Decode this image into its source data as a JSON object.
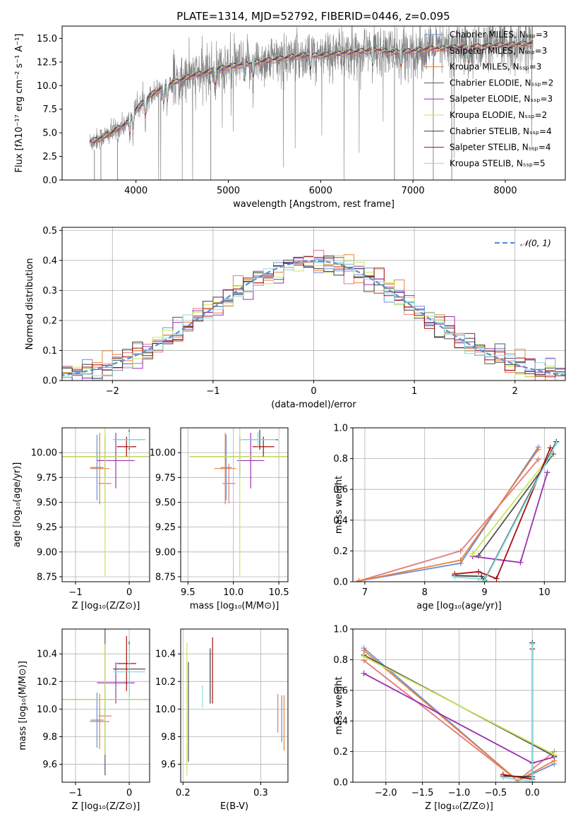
{
  "title": "PLATE=1314, MJD=52792, FIBERID=0446, z=0.095",
  "colors": {
    "Chabrier MILES": "#6a8fd8",
    "Salpeter MILES": "#e07a7a",
    "Kroupa MILES": "#e8813a",
    "Chabrier ELODIE": "#555555",
    "Salpeter ELODIE": "#9b30b0",
    "Kroupa ELODIE": "#c8e65a",
    "Chabrier STELIB": "#3a3a3a",
    "Salpeter STELIB": "#a80f0f",
    "Kroupa STELIB": "#88dde0",
    "data": "#808080",
    "normal": "#5b8ed6"
  },
  "chart_data": [
    {
      "id": "spectrum",
      "type": "line",
      "xlabel": "wavelength [Angstrom, rest frame]",
      "ylabel": "Flux [fλ10⁻¹⁷ erg cm⁻² s⁻¹ A⁻¹]",
      "xlim": [
        3200,
        8650
      ],
      "ylim": [
        0,
        16.3
      ],
      "xticks": [
        "4000",
        "5000",
        "6000",
        "7000",
        "8000"
      ],
      "yticks": [
        "0.0",
        "2.5",
        "5.0",
        "7.5",
        "10.0",
        "12.5",
        "15.0"
      ],
      "legend_position": "upper-right",
      "legend": [
        "Chabrier MILES, Nₛₛₚ=3",
        "Salpeter MILES, Nₛₛₚ=3",
        "Kroupa MILES, Nₛₛₚ=3",
        "Chabrier ELODIE, Nₛₛₚ=2",
        "Salpeter ELODIE, Nₛₛₚ=3",
        "Kroupa ELODIE, Nₛₛₚ=2",
        "Chabrier STELIB, Nₛₛₚ=4",
        "Salpeter STELIB, Nₛₛₚ=4",
        "Kroupa STELIB, Nₛₛₚ=5"
      ],
      "continuum": {
        "x": [
          3500,
          3700,
          3900,
          4000,
          4200,
          4400,
          4600,
          4800,
          5000,
          5200,
          5400,
          5600,
          5800,
          6000,
          6200,
          6400,
          6600,
          6800,
          7000,
          7200,
          7400,
          7600,
          7800,
          8000,
          8200,
          8300
        ],
        "y": [
          4.0,
          4.8,
          6.0,
          7.5,
          9.3,
          10.3,
          11.0,
          11.5,
          12.0,
          12.3,
          12.6,
          12.9,
          13.2,
          13.2,
          13.4,
          13.6,
          13.8,
          13.5,
          13.7,
          13.9,
          14.0,
          14.1,
          14.2,
          14.3,
          14.4,
          14.5
        ]
      }
    },
    {
      "id": "residuals",
      "type": "histogram",
      "xlabel": "(data-model)/error",
      "ylabel": "Normed distribution",
      "xlim": [
        -2.5,
        2.5
      ],
      "ylim": [
        0,
        0.51
      ],
      "xticks": [
        "−2",
        "−1",
        "0",
        "1",
        "2"
      ],
      "yticks": [
        "0.0",
        "0.1",
        "0.2",
        "0.3",
        "0.4",
        "0.5"
      ],
      "grid": true,
      "bin_width": 0.1,
      "legend_position": "upper-right",
      "legend": [
        "𝒩(0, 1)"
      ]
    },
    {
      "id": "age-vs-Z",
      "type": "scatter",
      "xlabel": "Z [log₁₀(Z/Z⊙)]",
      "ylabel": "age  [log₁₀(age/yr)]",
      "xlim": [
        -1.25,
        0.38
      ],
      "ylim": [
        8.7,
        10.25
      ],
      "xticks": [
        "−1",
        "0"
      ],
      "yticks": [
        "8.75",
        "9.00",
        "9.25",
        "9.50",
        "9.75",
        "10.00"
      ],
      "grid": true,
      "points": [
        {
          "model": "Chabrier MILES",
          "x": -0.6,
          "y": 9.85,
          "xerr": 0.12,
          "yerr": 0.33
        },
        {
          "model": "Salpeter MILES",
          "x": -0.45,
          "y": 9.69,
          "xerr": 0.12,
          "yerr": 0.2
        },
        {
          "model": "Kroupa MILES",
          "x": -0.55,
          "y": 9.84,
          "xerr": 0.18,
          "yerr": 0.36
        },
        {
          "model": "Chabrier ELODIE",
          "x": -0.45,
          "y": 9.96,
          "xerr": 1.0,
          "yerr": 0.2
        },
        {
          "model": "Salpeter ELODIE",
          "x": -0.25,
          "y": 9.92,
          "xerr": 0.35,
          "yerr": 0.28
        },
        {
          "model": "Kroupa ELODIE",
          "x": -0.45,
          "y": 9.96,
          "xerr": 1.0,
          "yerr": 1.2
        },
        {
          "model": "Chabrier STELIB",
          "x": 0.0,
          "y": 10.13,
          "xerr": 0.3,
          "yerr": 0.1
        },
        {
          "model": "Salpeter STELIB",
          "x": -0.05,
          "y": 10.06,
          "xerr": 0.18,
          "yerr": 0.1
        },
        {
          "model": "Kroupa STELIB",
          "x": 0.0,
          "y": 10.13,
          "xerr": 0.3,
          "yerr": 0.08
        }
      ]
    },
    {
      "id": "age-vs-mass",
      "type": "scatter",
      "xlabel": "mass [log₁₀(M/M⊙)]",
      "ylabel": "",
      "xlim": [
        9.42,
        10.6
      ],
      "ylim": [
        8.7,
        10.25
      ],
      "xticks": [
        "9.5",
        "10.0",
        "10.5"
      ],
      "yticks": [
        "8.75",
        "9.00",
        "9.25",
        "9.50",
        "9.75",
        "10.00"
      ],
      "grid": true,
      "points": [
        {
          "model": "Chabrier MILES",
          "x": 9.92,
          "y": 9.85,
          "xerr": 0.06,
          "yerr": 0.33
        },
        {
          "model": "Salpeter MILES",
          "x": 9.95,
          "y": 9.69,
          "xerr": 0.07,
          "yerr": 0.2
        },
        {
          "model": "Kroupa MILES",
          "x": 9.91,
          "y": 9.84,
          "xerr": 0.12,
          "yerr": 0.36
        },
        {
          "model": "Chabrier ELODIE",
          "x": 10.07,
          "y": 9.96,
          "xerr": 0.55,
          "yerr": 0.2
        },
        {
          "model": "Salpeter ELODIE",
          "x": 10.19,
          "y": 9.92,
          "xerr": 0.15,
          "yerr": 0.28
        },
        {
          "model": "Kroupa ELODIE",
          "x": 10.07,
          "y": 9.96,
          "xerr": 0.55,
          "yerr": 1.2
        },
        {
          "model": "Chabrier STELIB",
          "x": 10.29,
          "y": 10.13,
          "xerr": 0.2,
          "yerr": 0.1
        },
        {
          "model": "Salpeter STELIB",
          "x": 10.33,
          "y": 10.06,
          "xerr": 0.12,
          "yerr": 0.1
        },
        {
          "model": "Kroupa STELIB",
          "x": 10.27,
          "y": 10.13,
          "xerr": 0.2,
          "yerr": 0.08
        }
      ]
    },
    {
      "id": "weight-vs-age",
      "type": "line",
      "xlabel": "age  [log₁₀(age/yr)]",
      "ylabel": "mass weight",
      "xlim": [
        6.8,
        10.35
      ],
      "ylim": [
        0,
        1.0
      ],
      "xticks": [
        "7",
        "8",
        "9",
        "10"
      ],
      "yticks": [
        "0.0",
        "0.2",
        "0.4",
        "0.6",
        "0.8",
        "1.0"
      ],
      "grid": true,
      "series": [
        {
          "model": "Chabrier MILES",
          "x": [
            6.9,
            8.6,
            9.9
          ],
          "y": [
            0.005,
            0.12,
            0.875
          ]
        },
        {
          "model": "Salpeter MILES",
          "x": [
            6.9,
            8.6,
            9.9
          ],
          "y": [
            0.005,
            0.2,
            0.795
          ]
        },
        {
          "model": "Kroupa MILES",
          "x": [
            6.9,
            8.6,
            9.9
          ],
          "y": [
            0.005,
            0.14,
            0.86
          ]
        },
        {
          "model": "Chabrier ELODIE",
          "x": [
            8.9,
            10.15
          ],
          "y": [
            0.17,
            0.83
          ]
        },
        {
          "model": "Salpeter ELODIE",
          "x": [
            8.8,
            9.6,
            10.05
          ],
          "y": [
            0.165,
            0.125,
            0.71
          ]
        },
        {
          "model": "Kroupa ELODIE",
          "x": [
            8.8,
            10.1
          ],
          "y": [
            0.18,
            0.82
          ]
        },
        {
          "model": "Chabrier STELIB",
          "x": [
            8.5,
            8.95,
            9.0,
            10.2
          ],
          "y": [
            0.04,
            0.035,
            0.01,
            0.91
          ]
        },
        {
          "model": "Salpeter STELIB",
          "x": [
            8.5,
            8.9,
            9.2,
            10.1
          ],
          "y": [
            0.05,
            0.065,
            0.02,
            0.87
          ]
        },
        {
          "model": "Kroupa STELIB",
          "x": [
            8.5,
            8.9,
            9.0,
            10.2
          ],
          "y": [
            0.03,
            0.02,
            0.005,
            0.9
          ]
        }
      ]
    },
    {
      "id": "mass-vs-Z",
      "type": "scatter",
      "xlabel": "Z [log₁₀(Z/Z⊙)]",
      "ylabel": "mass [log₁₀(M/M⊙)]",
      "xlim": [
        -1.25,
        0.38
      ],
      "ylim": [
        9.47,
        10.58
      ],
      "xticks": [
        "−1",
        "0"
      ],
      "yticks": [
        "9.6",
        "9.8",
        "10.0",
        "10.2",
        "10.4"
      ],
      "grid": true,
      "points": [
        {
          "model": "Chabrier MILES",
          "x": -0.6,
          "y": 9.92,
          "xerr": 0.12,
          "yerr": 0.2
        },
        {
          "model": "Salpeter MILES",
          "x": -0.45,
          "y": 9.95,
          "xerr": 0.12,
          "yerr": 0.07
        },
        {
          "model": "Kroupa MILES",
          "x": -0.55,
          "y": 9.91,
          "xerr": 0.18,
          "yerr": 0.2
        },
        {
          "model": "Chabrier ELODIE",
          "x": -0.45,
          "y": 10.07,
          "xerr": 1.0,
          "yerr": 0.55
        },
        {
          "model": "Salpeter ELODIE",
          "x": -0.25,
          "y": 10.19,
          "xerr": 0.35,
          "yerr": 0.15
        },
        {
          "model": "Kroupa ELODIE",
          "x": -0.45,
          "y": 10.07,
          "xerr": 1.0,
          "yerr": 0.4
        },
        {
          "model": "Chabrier STELIB",
          "x": 0.0,
          "y": 10.29,
          "xerr": 0.3,
          "yerr": 0.2
        },
        {
          "model": "Salpeter STELIB",
          "x": -0.05,
          "y": 10.33,
          "xerr": 0.18,
          "yerr": 0.2
        },
        {
          "model": "Kroupa STELIB",
          "x": 0.0,
          "y": 10.27,
          "xerr": 0.3,
          "yerr": 0.2
        }
      ]
    },
    {
      "id": "mass-vs-ebv",
      "type": "scatter",
      "xlabel": "E(B-V)",
      "ylabel": "",
      "xlim": [
        0.197,
        0.335
      ],
      "ylim": [
        9.47,
        10.58
      ],
      "xticks": [
        "0.2",
        "0.3"
      ],
      "yticks": [
        "9.6",
        "9.8",
        "10.0",
        "10.2",
        "10.4"
      ],
      "grid": true,
      "points": [
        {
          "model": "Kroupa ELODIE",
          "x": 0.205,
          "y": 10.0,
          "yerr": 0.48
        },
        {
          "model": "Chabrier ELODIE",
          "x": 0.207,
          "y": 9.98,
          "yerr": 0.36
        },
        {
          "model": "Kroupa STELIB",
          "x": 0.225,
          "y": 10.09,
          "yerr": 0.08
        },
        {
          "model": "Chabrier STELIB",
          "x": 0.235,
          "y": 10.24,
          "yerr": 0.2
        },
        {
          "model": "Salpeter STELIB",
          "x": 0.238,
          "y": 10.28,
          "yerr": 0.24
        },
        {
          "model": "Salpeter MILES",
          "x": 0.322,
          "y": 9.97,
          "yerr": 0.14
        },
        {
          "model": "Chabrier MILES",
          "x": 0.327,
          "y": 9.93,
          "yerr": 0.17
        },
        {
          "model": "Kroupa MILES",
          "x": 0.33,
          "y": 9.9,
          "yerr": 0.2
        }
      ]
    },
    {
      "id": "weight-vs-Z",
      "type": "line",
      "xlabel": "Z [log₁₀(Z/Z⊙)]",
      "ylabel": "mass weight",
      "xlim": [
        -2.45,
        0.45
      ],
      "ylim": [
        0,
        1.0
      ],
      "xticks": [
        "−2.0",
        "−1.5",
        "−1.0",
        "−0.5",
        "0.0"
      ],
      "yticks": [
        "0.0",
        "0.2",
        "0.4",
        "0.6",
        "0.8",
        "1.0"
      ],
      "grid": true,
      "series": [
        {
          "model": "Chabrier MILES",
          "x": [
            -2.3,
            -0.2,
            0.3
          ],
          "y": [
            0.875,
            0.01,
            0.12
          ]
        },
        {
          "model": "Salpeter MILES",
          "x": [
            -2.3,
            -0.2,
            0.3
          ],
          "y": [
            0.795,
            0.01,
            0.2
          ]
        },
        {
          "model": "Kroupa MILES",
          "x": [
            -2.3,
            -0.2,
            0.3
          ],
          "y": [
            0.86,
            0.01,
            0.14
          ]
        },
        {
          "model": "Chabrier ELODIE",
          "x": [
            -2.3,
            0.3
          ],
          "y": [
            0.83,
            0.17
          ]
        },
        {
          "model": "Salpeter ELODIE",
          "x": [
            -2.3,
            0.0,
            0.3
          ],
          "y": [
            0.71,
            0.125,
            0.165
          ]
        },
        {
          "model": "Kroupa ELODIE",
          "x": [
            -2.3,
            0.3
          ],
          "y": [
            0.82,
            0.18
          ]
        },
        {
          "model": "Chabrier STELIB",
          "x": [
            -0.4,
            0.0,
            0.0
          ],
          "y": [
            0.04,
            0.035,
            0.91
          ]
        },
        {
          "model": "Salpeter STELIB",
          "x": [
            -0.4,
            0.0,
            0.0
          ],
          "y": [
            0.05,
            0.02,
            0.87
          ]
        },
        {
          "model": "Kroupa STELIB",
          "x": [
            -0.4,
            0.0,
            0.0
          ],
          "y": [
            0.03,
            0.005,
            0.9
          ]
        }
      ]
    }
  ]
}
